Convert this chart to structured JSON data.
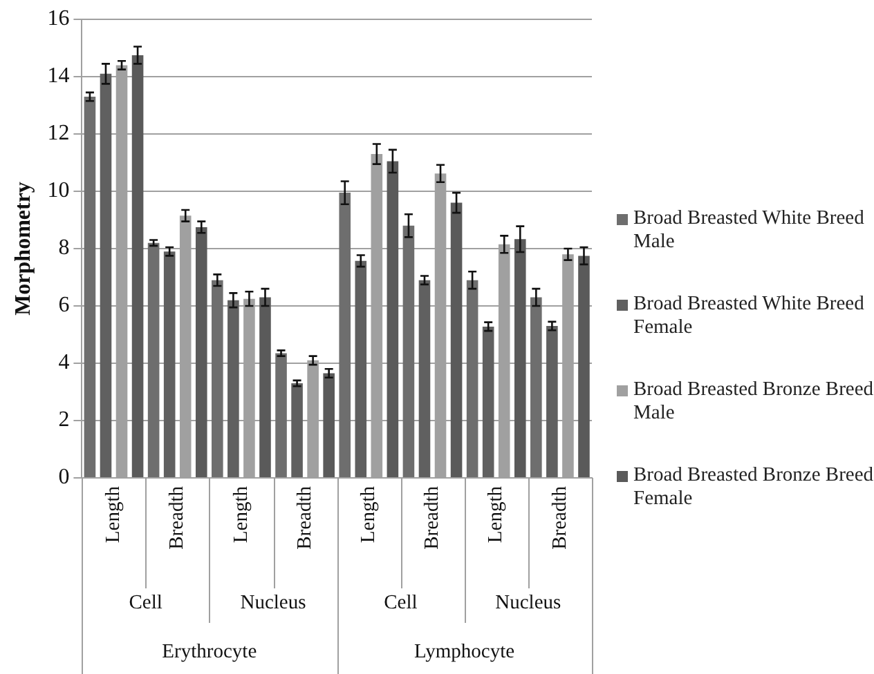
{
  "chart_data": {
    "type": "bar",
    "ylabel": "Morphometry",
    "categories": [
      "Length",
      "Breadth",
      "Length",
      "Breadth",
      "Length",
      "Breadth",
      "Length",
      "Breadth"
    ],
    "annotations": [
      "Cell",
      "Nucleus",
      "Cell",
      "Nucleus",
      "Erythrocyte",
      "Lymphocyte"
    ],
    "series": [
      {
        "name": "Broad Breasted White Breed Male",
        "color": "#6e6e6e",
        "values": [
          13.3,
          8.2,
          6.9,
          4.35,
          9.95,
          8.8,
          6.9,
          6.3
        ],
        "errors": [
          0.15,
          0.1,
          0.2,
          0.1,
          0.4,
          0.4,
          0.3,
          0.3
        ]
      },
      {
        "name": "Broad Breasted White Breed Female",
        "color": "#606060",
        "values": [
          14.1,
          7.9,
          6.2,
          3.3,
          7.57,
          6.9,
          5.28,
          5.3
        ],
        "errors": [
          0.35,
          0.15,
          0.25,
          0.1,
          0.2,
          0.15,
          0.15,
          0.15
        ]
      },
      {
        "name": "Broad Breasted Bronze Breed Male",
        "color": "#a0a0a0",
        "values": [
          14.4,
          9.15,
          6.25,
          4.1,
          11.3,
          10.62,
          8.15,
          7.8
        ],
        "errors": [
          0.15,
          0.2,
          0.25,
          0.15,
          0.35,
          0.3,
          0.3,
          0.2
        ]
      },
      {
        "name": "Broad Breasted Bronze Breed Female",
        "color": "#5a5a5a",
        "values": [
          14.75,
          8.75,
          6.3,
          3.65,
          11.05,
          9.6,
          8.33,
          7.75
        ],
        "errors": [
          0.3,
          0.2,
          0.3,
          0.15,
          0.4,
          0.35,
          0.45,
          0.3
        ]
      }
    ],
    "ylim": [
      0,
      16
    ],
    "yticks": [
      0,
      2,
      4,
      6,
      8,
      10,
      12,
      14,
      16
    ],
    "grid": "y",
    "legend": "right"
  }
}
